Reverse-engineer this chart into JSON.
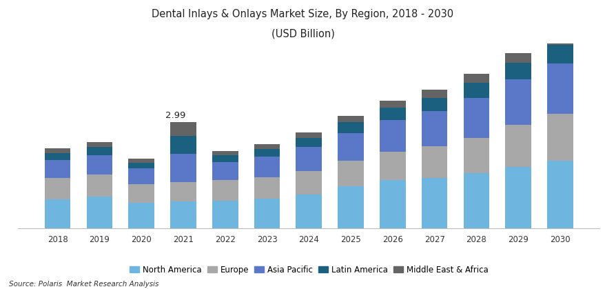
{
  "title_line1": "Dental Inlays & Onlays Market Size, By Region, 2018 - 2030",
  "title_line2": "(USD Billion)",
  "years": [
    2018,
    2019,
    2020,
    2021,
    2022,
    2023,
    2024,
    2025,
    2026,
    2027,
    2028,
    2029,
    2030
  ],
  "north_america": [
    0.82,
    0.9,
    0.72,
    0.75,
    0.78,
    0.83,
    0.95,
    1.18,
    1.35,
    1.42,
    1.55,
    1.72,
    1.9
  ],
  "europe": [
    0.6,
    0.62,
    0.52,
    0.55,
    0.57,
    0.6,
    0.65,
    0.72,
    0.8,
    0.88,
    1.0,
    1.18,
    1.32
  ],
  "asia_pacific": [
    0.5,
    0.54,
    0.44,
    0.8,
    0.52,
    0.58,
    0.68,
    0.78,
    0.9,
    1.0,
    1.12,
    1.28,
    1.42
  ],
  "latin_america": [
    0.2,
    0.22,
    0.17,
    0.5,
    0.19,
    0.22,
    0.26,
    0.3,
    0.34,
    0.37,
    0.42,
    0.47,
    0.52
  ],
  "mea": [
    0.13,
    0.14,
    0.11,
    0.39,
    0.12,
    0.14,
    0.16,
    0.18,
    0.2,
    0.22,
    0.25,
    0.28,
    0.32
  ],
  "annotation_year_idx": 3,
  "annotation_text": "2.99",
  "colors": {
    "north_america": "#6EB5E0",
    "europe": "#A8A8A8",
    "asia_pacific": "#5B78C8",
    "latin_america": "#1C6080",
    "mea": "#646464"
  },
  "source_text": "Source: Polaris  Market Research Analysis",
  "bar_width": 0.62,
  "ylim": [
    0,
    5.2
  ],
  "background_color": "#FFFFFF",
  "plot_bg_color": "#FFFFFF",
  "border_color": "#BBBBBB"
}
